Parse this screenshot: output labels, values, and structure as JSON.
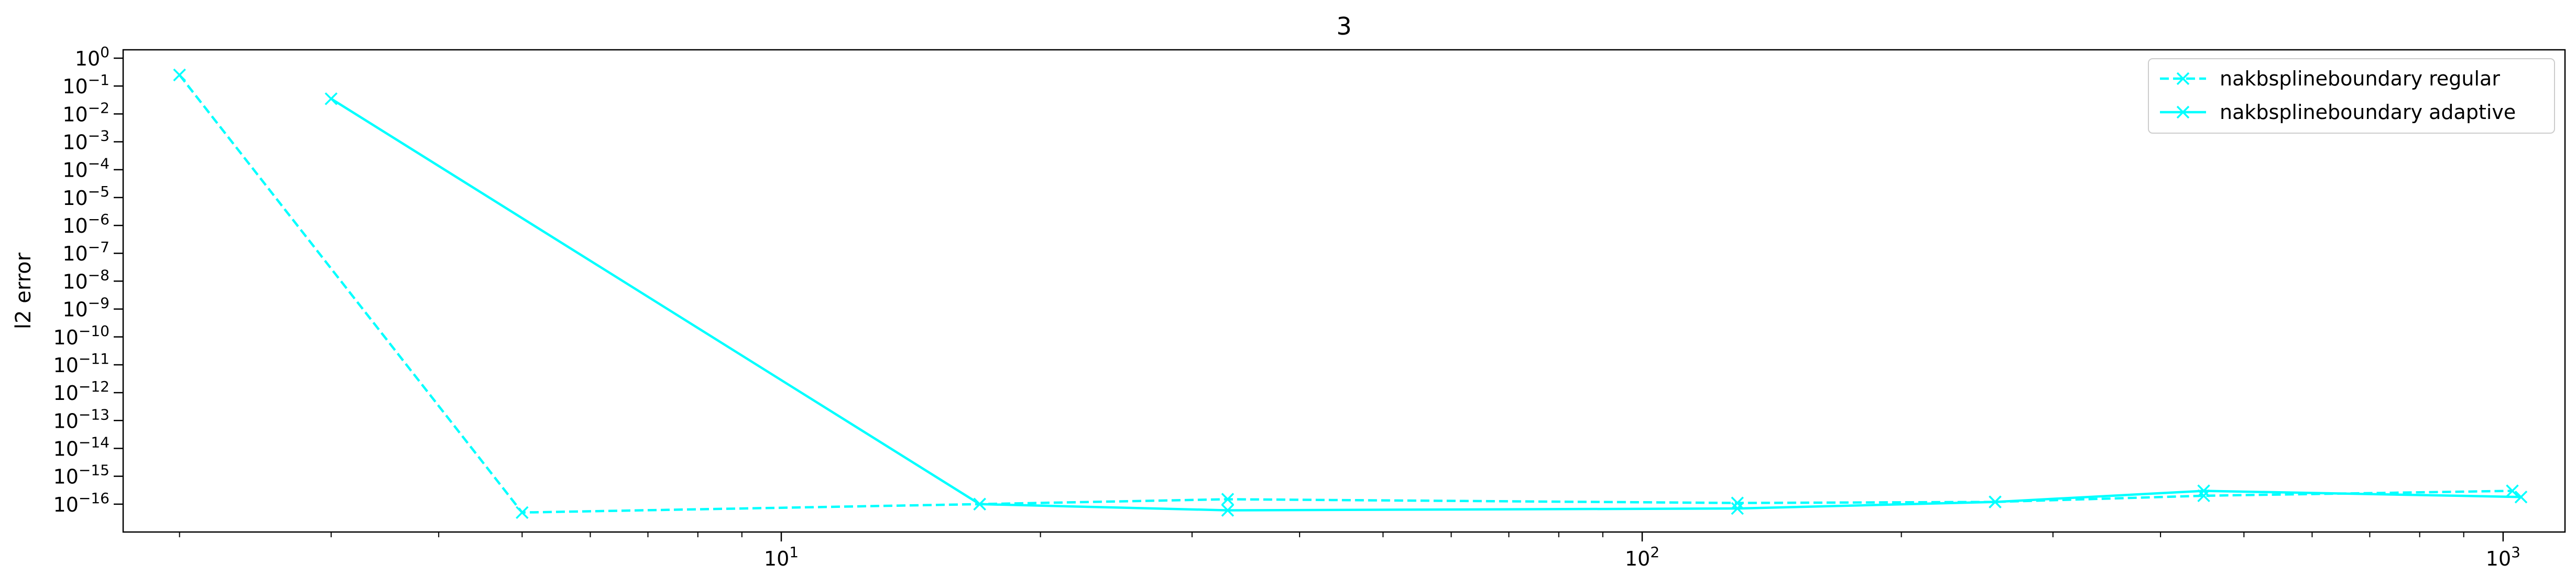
{
  "chart_data": {
    "type": "line",
    "title": "3",
    "xlabel": "",
    "ylabel": "l2 error",
    "xscale": "log",
    "yscale": "log",
    "xlim": [
      1.72,
      1180
    ],
    "ylim": [
      1e-17,
      2
    ],
    "x_ticks": [
      {
        "value": 10,
        "base": "10",
        "exp": "1"
      },
      {
        "value": 100,
        "base": "10",
        "exp": "2"
      },
      {
        "value": 1000,
        "base": "10",
        "exp": "3"
      }
    ],
    "y_ticks": [
      {
        "value": 1,
        "base": "10",
        "exp": "0"
      },
      {
        "value": 0.1,
        "base": "10",
        "exp": "−1"
      },
      {
        "value": 0.01,
        "base": "10",
        "exp": "−2"
      },
      {
        "value": 0.001,
        "base": "10",
        "exp": "−3"
      },
      {
        "value": 0.0001,
        "base": "10",
        "exp": "−4"
      },
      {
        "value": 1e-05,
        "base": "10",
        "exp": "−5"
      },
      {
        "value": 1e-06,
        "base": "10",
        "exp": "−6"
      },
      {
        "value": 1e-07,
        "base": "10",
        "exp": "−7"
      },
      {
        "value": 1e-08,
        "base": "10",
        "exp": "−8"
      },
      {
        "value": 1e-09,
        "base": "10",
        "exp": "−9"
      },
      {
        "value": 1e-10,
        "base": "10",
        "exp": "−10"
      },
      {
        "value": 1e-11,
        "base": "10",
        "exp": "−11"
      },
      {
        "value": 1e-12,
        "base": "10",
        "exp": "−12"
      },
      {
        "value": 1e-13,
        "base": "10",
        "exp": "−13"
      },
      {
        "value": 1e-14,
        "base": "10",
        "exp": "−14"
      },
      {
        "value": 1e-15,
        "base": "10",
        "exp": "−15"
      },
      {
        "value": 1e-16,
        "base": "10",
        "exp": "−16"
      }
    ],
    "grid": false,
    "legend_position": "top-right",
    "series": [
      {
        "name": "nakbsplineboundary regular",
        "color": "#00ffff",
        "linestyle": "dashed",
        "marker": "x",
        "x": [
          2,
          5,
          17,
          33,
          129,
          257,
          449,
          1025
        ],
        "y": [
          0.25,
          5e-17,
          1e-16,
          1.5e-16,
          1.1e-16,
          1.2e-16,
          2e-16,
          3e-16
        ]
      },
      {
        "name": "nakbsplineboundary adaptive",
        "color": "#00ffff",
        "linestyle": "solid",
        "marker": "x",
        "x": [
          3,
          17,
          33,
          129,
          257,
          449,
          1049
        ],
        "y": [
          0.035,
          1e-16,
          6e-17,
          7e-17,
          1.2e-16,
          3e-16,
          1.8e-16
        ]
      }
    ]
  }
}
